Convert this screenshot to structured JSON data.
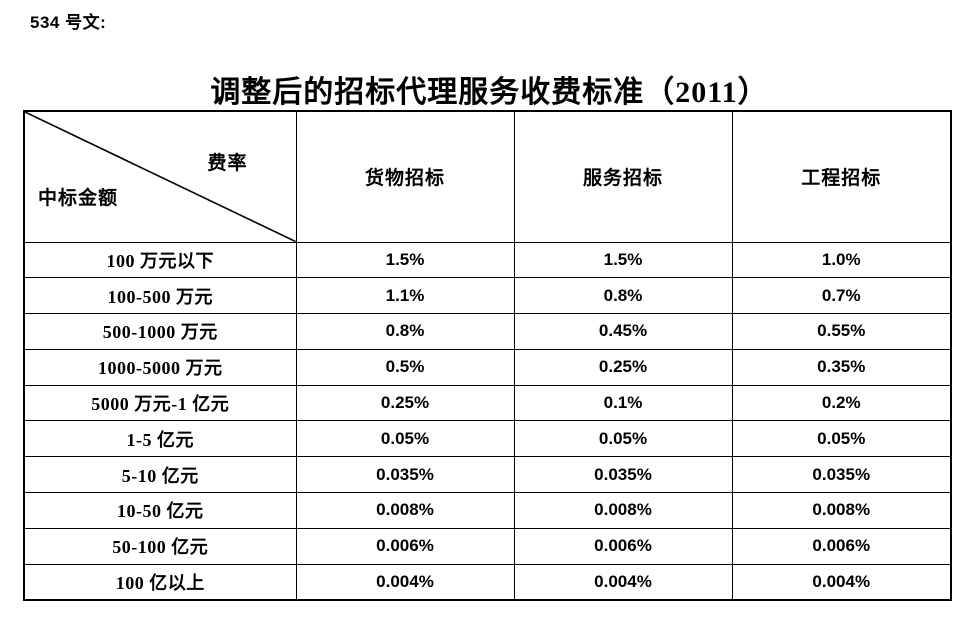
{
  "page": {
    "doc_label": "534 号文:",
    "title": "调整后的招标代理服务收费标准（2011）"
  },
  "table": {
    "corner": {
      "top_right": "费率",
      "bottom_left": "中标金额"
    },
    "columns": [
      "货物招标",
      "服务招标",
      "工程招标"
    ],
    "rows": [
      {
        "label": "100 万元以下",
        "values": [
          "1.5%",
          "1.5%",
          "1.0%"
        ]
      },
      {
        "label": "100-500 万元",
        "values": [
          "1.1%",
          "0.8%",
          "0.7%"
        ]
      },
      {
        "label": "500-1000 万元",
        "values": [
          "0.8%",
          "0.45%",
          "0.55%"
        ]
      },
      {
        "label": "1000-5000 万元",
        "values": [
          "0.5%",
          "0.25%",
          "0.35%"
        ]
      },
      {
        "label": "5000 万元-1 亿元",
        "values": [
          "0.25%",
          "0.1%",
          "0.2%"
        ]
      },
      {
        "label": "1-5 亿元",
        "values": [
          "0.05%",
          "0.05%",
          "0.05%"
        ]
      },
      {
        "label": "5-10 亿元",
        "values": [
          "0.035%",
          "0.035%",
          "0.035%"
        ]
      },
      {
        "label": "10-50 亿元",
        "values": [
          "0.008%",
          "0.008%",
          "0.008%"
        ]
      },
      {
        "label": "50-100 亿元",
        "values": [
          "0.006%",
          "0.006%",
          "0.006%"
        ]
      },
      {
        "label": "100 亿以上",
        "values": [
          "0.004%",
          "0.004%",
          "0.004%"
        ]
      }
    ]
  },
  "chart_data": {
    "type": "table",
    "title": "调整后的招标代理服务收费标准（2011）",
    "corner_axis_labels": {
      "columns_axis": "费率",
      "rows_axis": "中标金额"
    },
    "columns": [
      "货物招标",
      "服务招标",
      "工程招标"
    ],
    "row_categories": [
      "100 万元以下",
      "100-500 万元",
      "500-1000 万元",
      "1000-5000 万元",
      "5000 万元-1 亿元",
      "1-5 亿元",
      "5-10 亿元",
      "10-50 亿元",
      "50-100 亿元",
      "100 亿以上"
    ],
    "series": [
      {
        "name": "货物招标",
        "values": [
          "1.5%",
          "1.1%",
          "0.8%",
          "0.5%",
          "0.25%",
          "0.05%",
          "0.035%",
          "0.008%",
          "0.006%",
          "0.004%"
        ]
      },
      {
        "name": "服务招标",
        "values": [
          "1.5%",
          "0.8%",
          "0.45%",
          "0.25%",
          "0.1%",
          "0.05%",
          "0.035%",
          "0.008%",
          "0.006%",
          "0.004%"
        ]
      },
      {
        "name": "工程招标",
        "values": [
          "1.0%",
          "0.7%",
          "0.55%",
          "0.35%",
          "0.2%",
          "0.05%",
          "0.035%",
          "0.008%",
          "0.006%",
          "0.004%"
        ]
      }
    ]
  },
  "colors": {
    "text": "#000000",
    "border": "#000000",
    "background": "#ffffff"
  }
}
